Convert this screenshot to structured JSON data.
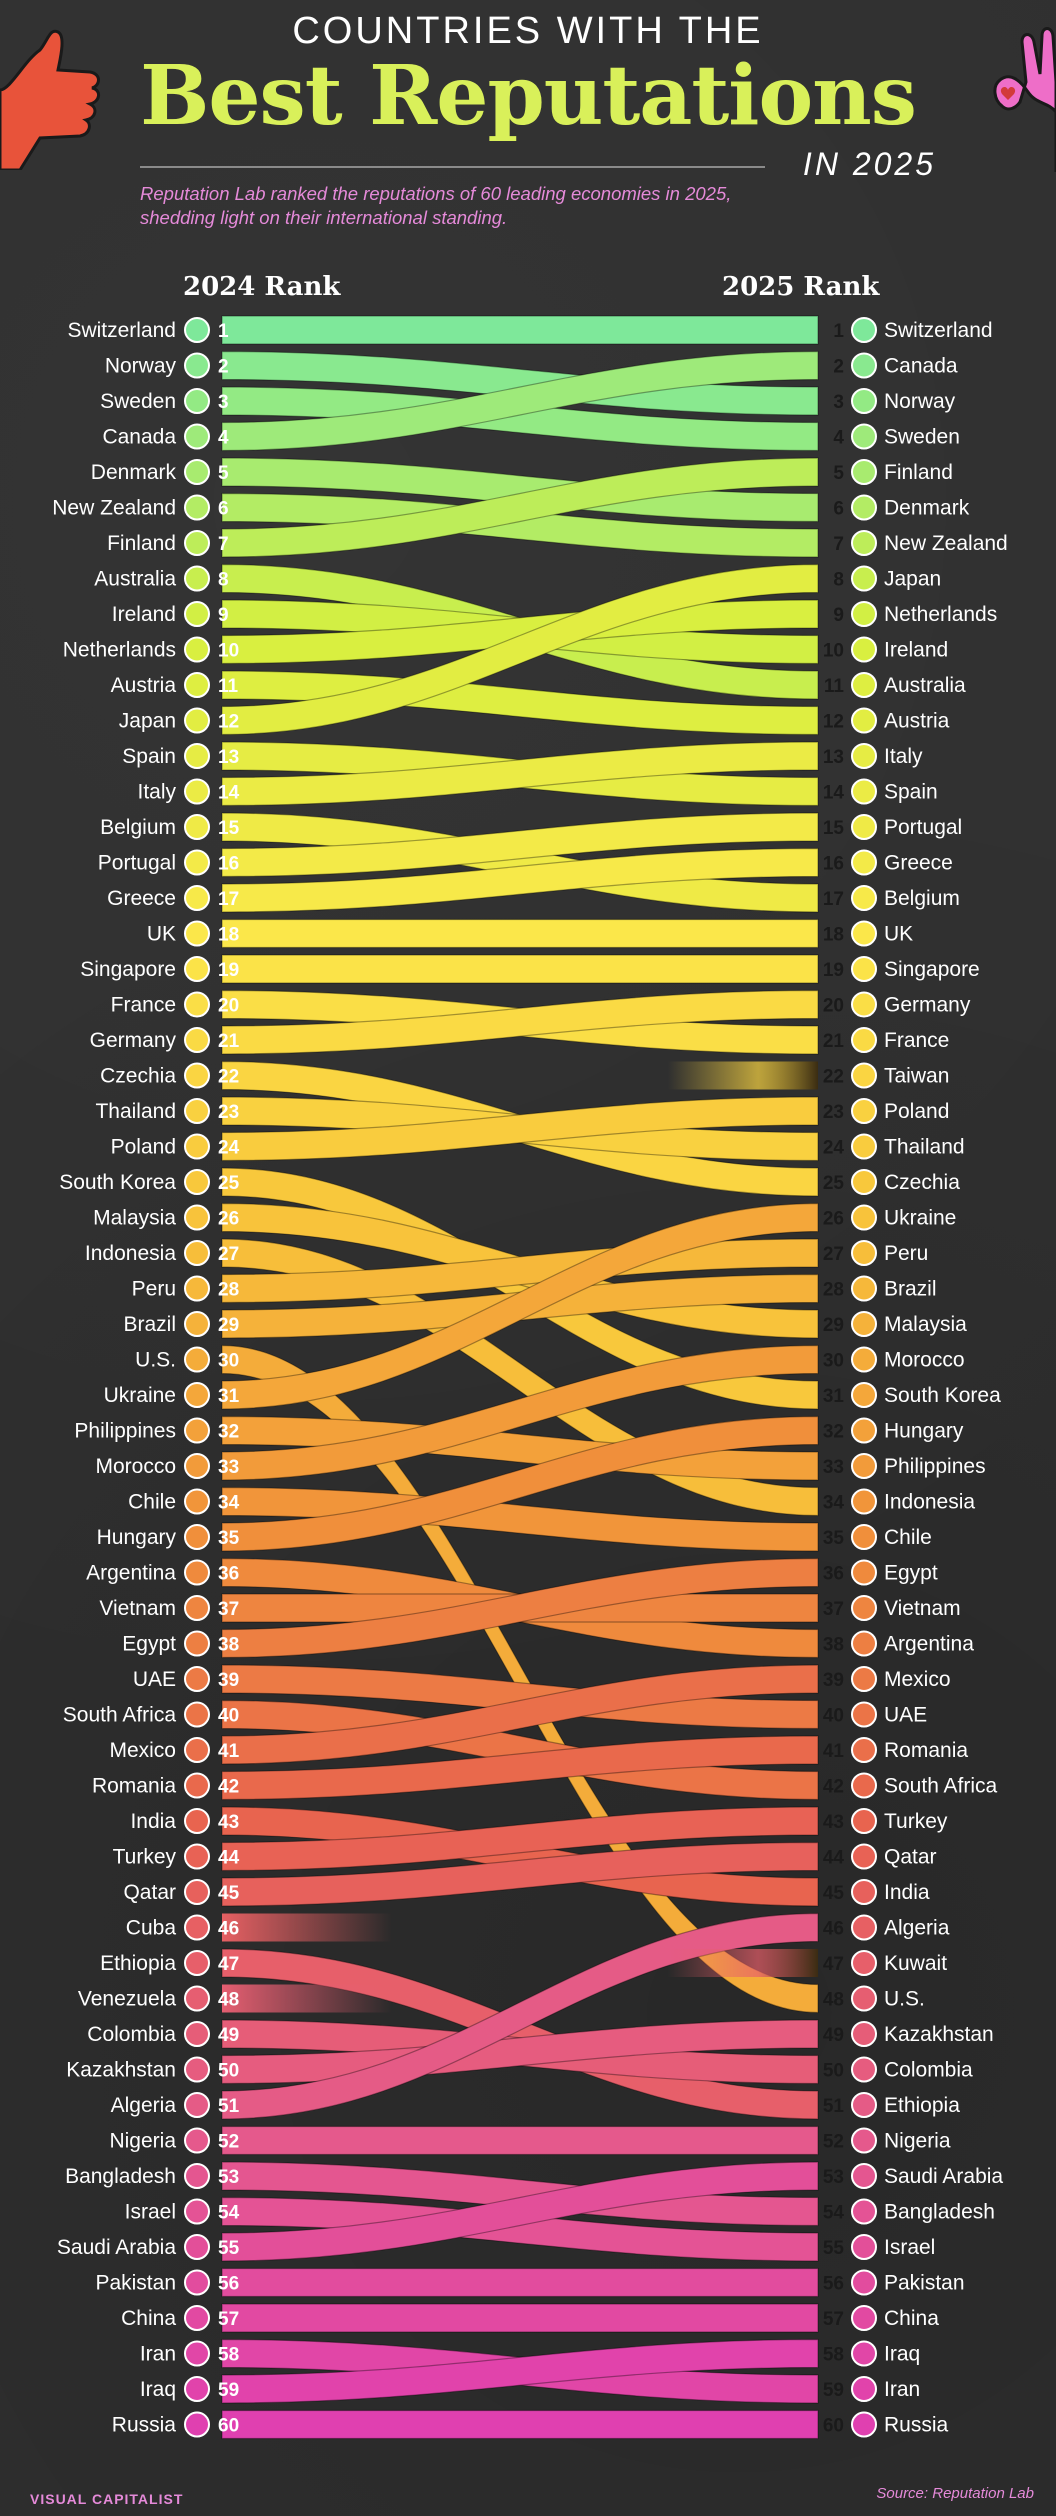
{
  "header": {
    "kicker": "COUNTRIES WITH THE",
    "title": "Best Reputations",
    "year": "IN 2025",
    "subtitle": "Reputation Lab ranked the reputations of 60 leading economies in 2025, shedding light on their international standing."
  },
  "footer": {
    "logo": "VISUAL CAPITALIST",
    "source": "Source: Reputation Lab"
  },
  "colors": {
    "background": "#2f2f2f",
    "title": "#d9f05a",
    "accent": "#e58ad9",
    "ribbon_gradient": [
      "#7ee89a",
      "#d7ef3f",
      "#fbe84a",
      "#f8c23a",
      "#f0913a",
      "#e8634f",
      "#e55a8a",
      "#e040b0"
    ]
  },
  "chart_data": {
    "type": "bump",
    "left_label": "2024 Rank",
    "right_label": "2025 Rank",
    "rankings_2024": [
      "Switzerland",
      "Norway",
      "Sweden",
      "Canada",
      "Denmark",
      "New Zealand",
      "Finland",
      "Australia",
      "Ireland",
      "Netherlands",
      "Austria",
      "Japan",
      "Spain",
      "Italy",
      "Belgium",
      "Portugal",
      "Greece",
      "UK",
      "Singapore",
      "France",
      "Germany",
      "Czechia",
      "Thailand",
      "Poland",
      "South Korea",
      "Malaysia",
      "Indonesia",
      "Peru",
      "Brazil",
      "U.S.",
      "Ukraine",
      "Philippines",
      "Morocco",
      "Chile",
      "Hungary",
      "Argentina",
      "Vietnam",
      "Egypt",
      "UAE",
      "South Africa",
      "Mexico",
      "Romania",
      "India",
      "Turkey",
      "Qatar",
      "Cuba",
      "Ethiopia",
      "Venezuela",
      "Colombia",
      "Kazakhstan",
      "Algeria",
      "Nigeria",
      "Bangladesh",
      "Israel",
      "Saudi Arabia",
      "Pakistan",
      "China",
      "Iran",
      "Iraq",
      "Russia"
    ],
    "rankings_2025": [
      "Switzerland",
      "Canada",
      "Norway",
      "Sweden",
      "Finland",
      "Denmark",
      "New Zealand",
      "Japan",
      "Netherlands",
      "Ireland",
      "Australia",
      "Austria",
      "Italy",
      "Spain",
      "Portugal",
      "Greece",
      "Belgium",
      "UK",
      "Singapore",
      "Germany",
      "France",
      "Taiwan",
      "Poland",
      "Thailand",
      "Czechia",
      "Ukraine",
      "Peru",
      "Brazil",
      "Malaysia",
      "Morocco",
      "South Korea",
      "Hungary",
      "Philippines",
      "Indonesia",
      "Chile",
      "Egypt",
      "Vietnam",
      "Argentina",
      "Mexico",
      "UAE",
      "Romania",
      "South Africa",
      "Turkey",
      "Qatar",
      "India",
      "Algeria",
      "Kuwait",
      "U.S.",
      "Kazakhstan",
      "Colombia",
      "Ethiopia",
      "Nigeria",
      "Saudi Arabia",
      "Bangladesh",
      "Israel",
      "Pakistan",
      "China",
      "Iraq",
      "Iran",
      "Russia"
    ]
  }
}
